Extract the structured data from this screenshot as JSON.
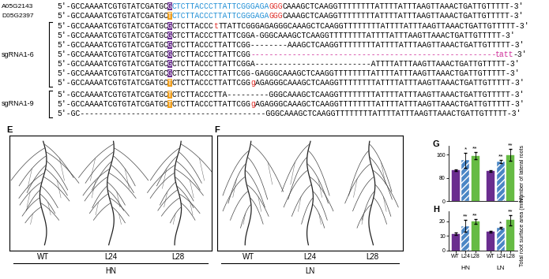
{
  "alignment": {
    "sections": [
      {
        "label": null,
        "rows": [
          {
            "label": "A05G2143",
            "segments": [
              {
                "text": "5'-GCCAAAATCGTGTATCGATGC",
                "color": "#000000"
              },
              {
                "text": "G",
                "color": "#ffffff",
                "highlight": "#6a2d8f"
              },
              {
                "text": "CTCTTACCCTTATTCGGGAGA",
                "color": "#1f8fd6"
              },
              {
                "text": "GGG",
                "color": "#e0302a"
              },
              {
                "text": "CAAAGCTCAAGGTTTTTTTTATTTTATTTAAGTTAAACTGATTGTTTTT-3'",
                "color": "#000000"
              }
            ]
          },
          {
            "label": "D05G2397",
            "segments": [
              {
                "text": "5'-GCCAAAATCGTGTATCGATGC",
                "color": "#000000"
              },
              {
                "text": "T",
                "color": "#ffffff",
                "highlight": "#f0a020"
              },
              {
                "text": "CTCTTACCCTTATTCGGGAGA",
                "color": "#1f8fd6"
              },
              {
                "text": "GGG",
                "color": "#e0302a"
              },
              {
                "text": "CAAAGCTCAAGGTTTTTTTTATTTTATTTAAGTTAAACTGATTGTTTTT-3'",
                "color": "#000000"
              }
            ]
          }
        ]
      },
      {
        "label": "sgRNA1-6",
        "rows": [
          {
            "label": null,
            "segments": [
              {
                "text": "5'-GCCAAAATCGTGTATCGATGC",
                "color": "#000000"
              },
              {
                "text": "G",
                "color": "#ffffff",
                "highlight": "#6a2d8f"
              },
              {
                "text": "CTCTTACCC",
                "color": "#000000"
              },
              {
                "text": "t",
                "color": "#e0302a"
              },
              {
                "text": "TTATTCGGGAGAGGGCAAAGCTCAAGGTTTTTTTTATTTTATTTAAGTTAAACTGATTGTTTTT-3'",
                "color": "#000000"
              }
            ]
          },
          {
            "label": null,
            "segments": [
              {
                "text": "5'-GCCAAAATCGTGTATCGATGC",
                "color": "#000000"
              },
              {
                "text": "G",
                "color": "#ffffff",
                "highlight": "#6a2d8f"
              },
              {
                "text": "CTCTTACCCTTATTCGGA-GGGCAAAGCTCAAGGTTTTTTTTATTTTATTTAAGTTAAACTGATTGTTTTT-3'",
                "color": "#000000"
              }
            ]
          },
          {
            "label": null,
            "segments": [
              {
                "text": "5'-GCCAAAATCGTGTATCGATGC",
                "color": "#000000"
              },
              {
                "text": "G",
                "color": "#ffffff",
                "highlight": "#6a2d8f"
              },
              {
                "text": "CTCTTACCCTTATTCGG--------AAAGCTCAAGGTTTTTTTTATTTTATTTAAGTTAAACTGATTGTTTTT-3'",
                "color": "#000000"
              }
            ]
          },
          {
            "label": null,
            "segments": [
              {
                "text": "5'-GCCAAAATCGTGTATCGATGC",
                "color": "#000000"
              },
              {
                "text": "G",
                "color": "#ffffff",
                "highlight": "#6a2d8f"
              },
              {
                "text": "CTCTTACCCTTATTCGG",
                "color": "#000000"
              },
              {
                "text": "-----------------------------------------------------",
                "color": "#d0309a"
              },
              {
                "text": "tatt",
                "color": "#d0309a"
              },
              {
                "text": "-3'",
                "color": "#000000"
              }
            ]
          },
          {
            "label": null,
            "segments": [
              {
                "text": "5'-GCCAAAATCGTGTATCGATGC",
                "color": "#000000"
              },
              {
                "text": "G",
                "color": "#ffffff",
                "highlight": "#6a2d8f"
              },
              {
                "text": "CTCTTACCCTTATTCGGA-------------------------ATTTTATTTAAGTTAAACTGATTGTTTTT-3'",
                "color": "#000000"
              }
            ]
          },
          {
            "label": null,
            "segments": [
              {
                "text": "5'-GCCAAAATCGTGTATCGATGC",
                "color": "#000000"
              },
              {
                "text": "G",
                "color": "#ffffff",
                "highlight": "#6a2d8f"
              },
              {
                "text": "CTCTTACCCTTATTCGG-GAGGGCAAAGCTCAAGGTTTTTTTTATTTTATTTAAGTTAAACTGATTGTTTTT-3'",
                "color": "#000000"
              }
            ]
          },
          {
            "label": null,
            "segments": [
              {
                "text": "5'-GCCAAAATCGTGTATCGATGC",
                "color": "#000000"
              },
              {
                "text": "T",
                "color": "#ffffff",
                "highlight": "#f0a020"
              },
              {
                "text": "CTCTTACCCTTATTCGG",
                "color": "#000000"
              },
              {
                "text": "g",
                "color": "#e0302a"
              },
              {
                "text": "AGAGGGCAAAGCTCAAGGTTTTTTTTATTTTATTTAAGTTAAACTGATTGTTTTT-3'",
                "color": "#000000"
              }
            ]
          }
        ]
      },
      {
        "label": "sgRNA1-9",
        "rows": [
          {
            "label": null,
            "segments": [
              {
                "text": "5'-GCCAAAATCGTGTATCGATGC",
                "color": "#000000"
              },
              {
                "text": "T",
                "color": "#ffffff",
                "highlight": "#f0a020"
              },
              {
                "text": "CTCTTACCCTTA---------GGGCAAAGCTCAAGGTTTTTTTTATTTTATTTAAGTTAAACTGATTGTTTTT-3'",
                "color": "#000000"
              }
            ]
          },
          {
            "label": null,
            "segments": [
              {
                "text": "5'-GCCAAAATCGTGTATCGATGC",
                "color": "#000000"
              },
              {
                "text": "T",
                "color": "#ffffff",
                "highlight": "#f0a020"
              },
              {
                "text": "CTCTTACCCTTATTCGG",
                "color": "#000000"
              },
              {
                "text": "g",
                "color": "#e0302a"
              },
              {
                "text": "AGAGGGCAAAGCTCAAGGTTTTTTTTATTTTATTTAAGTTAAACTGATTGTTTTT-3'",
                "color": "#000000"
              }
            ]
          },
          {
            "label": null,
            "segments": [
              {
                "text": "5'-GC----------------------------------------GGGCAAAGCTCAAGGTTTTTTTTATTTTATTTAAGTTAAACTGATTGTTTTT-3'",
                "color": "#000000"
              }
            ]
          }
        ]
      }
    ]
  },
  "root_images": [
    {
      "panel": "E",
      "genotypes": [
        "WT",
        "L24",
        "L28"
      ],
      "condition": "HN"
    },
    {
      "panel": "F",
      "genotypes": [
        "WT",
        "L24",
        "L28"
      ],
      "condition": "LN"
    }
  ],
  "chart_data": [
    {
      "type": "bar",
      "panel": "G",
      "categories": [
        "HN",
        "LN"
      ],
      "y_label": "Number of lateral roots",
      "ylim": [
        0,
        190
      ],
      "yticks": [
        0,
        80,
        160
      ],
      "tick_labels": "y",
      "series": [
        {
          "name": "WT",
          "color": "#6a2d8f",
          "values": [
            105,
            103
          ],
          "errors": [
            3,
            3
          ],
          "significance": [
            null,
            null
          ]
        },
        {
          "name": "L24",
          "color": "#4a86c5",
          "values": [
            140,
            135
          ],
          "errors": [
            25,
            5
          ],
          "significance": [
            "*",
            "**"
          ]
        },
        {
          "name": "L28",
          "color": "#66bb44",
          "values": [
            155,
            158
          ],
          "errors": [
            12,
            20
          ],
          "significance": [
            "**",
            "**"
          ]
        }
      ]
    },
    {
      "type": "bar",
      "panel": "H",
      "categories": [
        "HN",
        "LN"
      ],
      "y_label": "Total root surface area (mm²)",
      "ylim": [
        0,
        27
      ],
      "yticks": [
        0,
        10,
        20
      ],
      "series": [
        {
          "name": "WT",
          "color": "#6a2d8f",
          "values": [
            11.5,
            13
          ],
          "errors": [
            0.8,
            0.5
          ],
          "significance": [
            null,
            null
          ]
        },
        {
          "name": "L24",
          "color": "#4a86c5",
          "values": [
            17,
            15.5
          ],
          "errors": [
            4,
            0.5
          ],
          "significance": [
            "**",
            "*"
          ]
        },
        {
          "name": "L28",
          "color": "#66bb44",
          "values": [
            20,
            21
          ],
          "errors": [
            1.5,
            3.5
          ],
          "significance": [
            "**",
            "**"
          ]
        }
      ]
    }
  ]
}
